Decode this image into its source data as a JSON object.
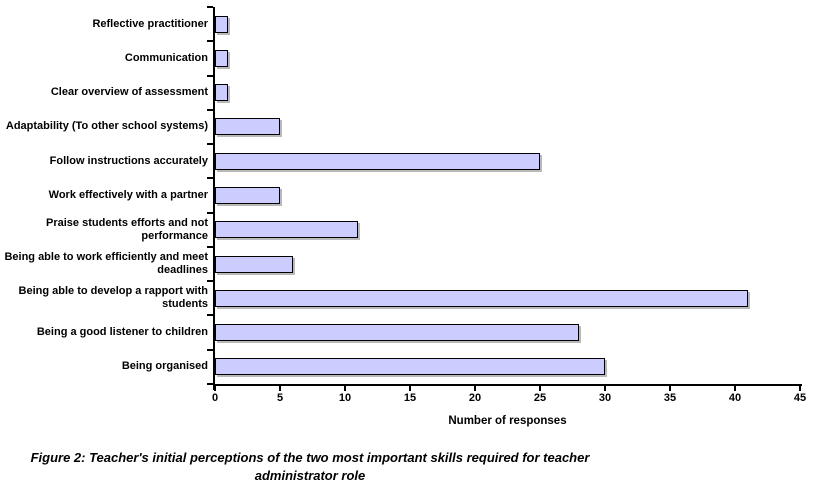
{
  "figure": {
    "caption": "Figure 2: Teacher's initial perceptions of the two most important skills required for teacher administrator role"
  },
  "chart_data": {
    "type": "bar",
    "orientation": "horizontal",
    "title": "",
    "xlabel": "Number of responses",
    "ylabel": "",
    "xlim": [
      0,
      45
    ],
    "xticks": [
      0,
      5,
      10,
      15,
      20,
      25,
      30,
      35,
      40,
      45
    ],
    "grid": false,
    "legend": false,
    "categories": [
      "Reflective practitioner",
      "Communication",
      "Clear overview of assessment",
      "Adaptability (To other school systems)",
      "Follow instructions accurately",
      "Work effectively with a partner",
      "Praise students efforts and not performance",
      "Being able to work efficiently and meet deadlines",
      "Being able to develop a rapport with students",
      "Being a good listener to children",
      "Being organised"
    ],
    "values": [
      1,
      1,
      1,
      5,
      25,
      5,
      11,
      6,
      41,
      28,
      30
    ],
    "bar_fill": "#CCCCFF",
    "bar_border": "#000000",
    "axis_color": "#000000"
  }
}
